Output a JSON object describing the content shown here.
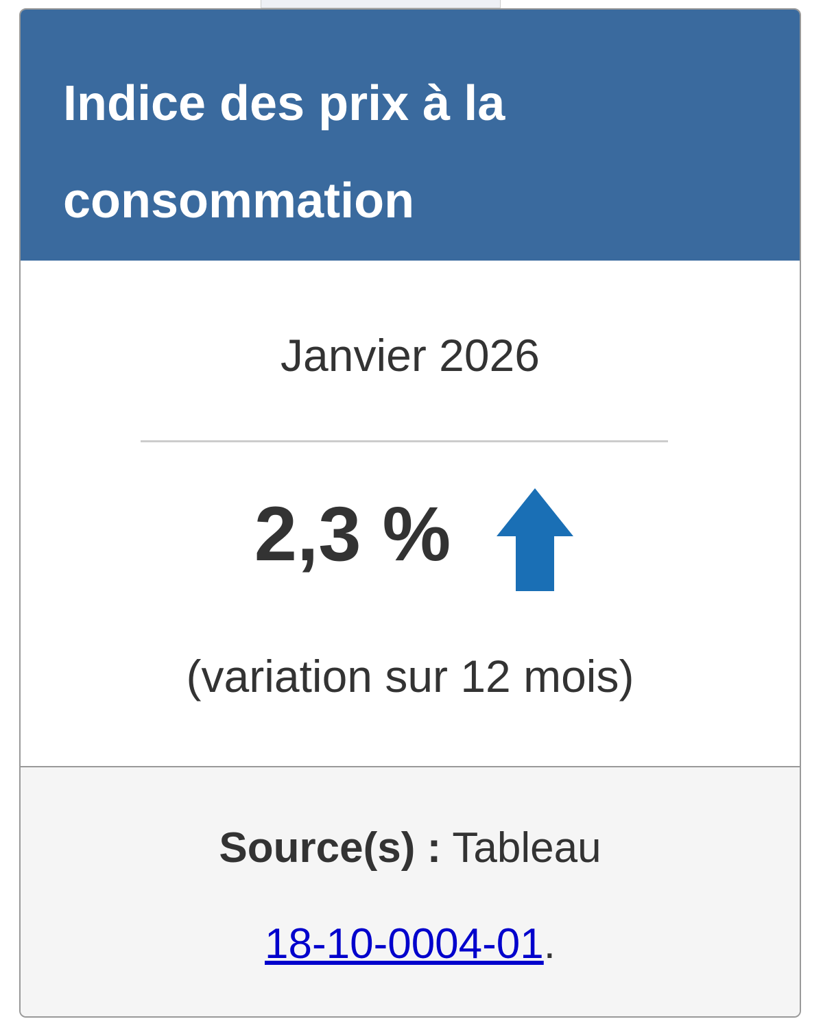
{
  "header": {
    "title": "Indice des prix à la consommation"
  },
  "body": {
    "period": "Janvier 2026",
    "value": "2,3 %",
    "note": "(variation sur 12 mois)"
  },
  "footer": {
    "source_label": "Source(s) :",
    "source_text": "Tableau",
    "link": "18-10-0004-01",
    "end": "."
  }
}
